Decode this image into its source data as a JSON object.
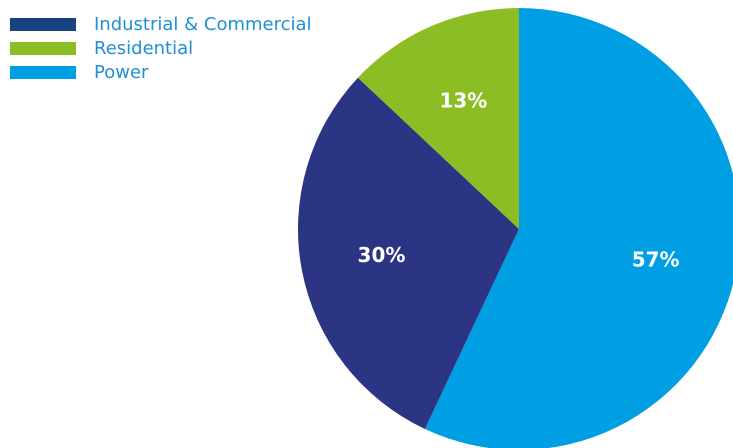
{
  "chart_data": {
    "type": "pie",
    "title": "",
    "categories": [
      "Power",
      "Industrial & Commercial",
      "Residential"
    ],
    "values": [
      57,
      30,
      13
    ],
    "labels": [
      "57%",
      "30%",
      "13%"
    ],
    "colors": [
      "#009fe3",
      "#2b3583",
      "#8dbd24"
    ],
    "start_angle_deg": 0,
    "direction": "clockwise",
    "legend": {
      "position": "top-left",
      "entries": [
        {
          "label": "Industrial & Commercial",
          "color": "#18417f"
        },
        {
          "label": "Residential",
          "color": "#8dbd24"
        },
        {
          "label": "Power",
          "color": "#009fe3"
        }
      ]
    }
  }
}
